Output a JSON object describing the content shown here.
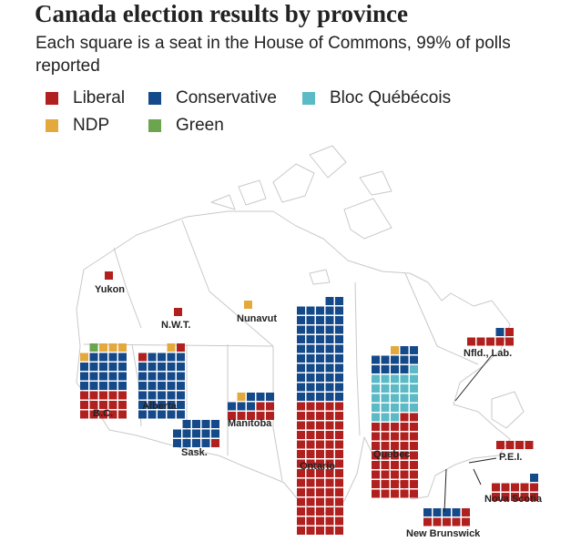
{
  "title": "Canada election results by province",
  "subtitle": "Each square is a seat in the House of Commons, 99% of polls reported",
  "colors": {
    "liberal": "#b0201f",
    "conservative": "#154a8a",
    "bloc": "#5bbac5",
    "ndp": "#e4a93c",
    "green": "#6ba64e",
    "map_fill": "#ffffff",
    "map_stroke": "#c9c9c9"
  },
  "legend": [
    {
      "party": "liberal",
      "label": "Liberal"
    },
    {
      "party": "conservative",
      "label": "Conservative"
    },
    {
      "party": "bloc",
      "label": "Bloc Québécois"
    },
    {
      "party": "ndp",
      "label": "NDP"
    },
    {
      "party": "green",
      "label": "Green"
    }
  ],
  "chart_data": {
    "type": "waffle-map",
    "title": "Canada election results by province",
    "subtitle": "Each square is a seat in the House of Commons, 99% of polls reported",
    "series_order": [
      "liberal",
      "conservative",
      "bloc",
      "ndp",
      "green"
    ],
    "provinces": [
      {
        "id": "yukon",
        "label": "Yukon",
        "seats": {
          "liberal": 1,
          "conservative": 0,
          "bloc": 0,
          "ndp": 0,
          "green": 0
        }
      },
      {
        "id": "nwt",
        "label": "N.W.T.",
        "seats": {
          "liberal": 1,
          "conservative": 0,
          "bloc": 0,
          "ndp": 0,
          "green": 0
        }
      },
      {
        "id": "nunavut",
        "label": "Nunavut",
        "seats": {
          "liberal": 0,
          "conservative": 0,
          "bloc": 0,
          "ndp": 1,
          "green": 0
        }
      },
      {
        "id": "bc",
        "label": "B.C.",
        "seats": {
          "liberal": 15,
          "conservative": 19,
          "bloc": 0,
          "ndp": 4,
          "green": 1
        }
      },
      {
        "id": "alberta",
        "label": "Alberta",
        "seats": {
          "liberal": 2,
          "conservative": 34,
          "bloc": 0,
          "ndp": 1,
          "green": 0
        }
      },
      {
        "id": "sask",
        "label": "Sask.",
        "seats": {
          "liberal": 1,
          "conservative": 13,
          "bloc": 0,
          "ndp": 0,
          "green": 0
        }
      },
      {
        "id": "manitoba",
        "label": "Manitoba",
        "seats": {
          "liberal": 7,
          "conservative": 6,
          "bloc": 0,
          "ndp": 1,
          "green": 0
        }
      },
      {
        "id": "ontario",
        "label": "Ontario",
        "seats": {
          "liberal": 70,
          "conservative": 52,
          "bloc": 0,
          "ndp": 0,
          "green": 0
        }
      },
      {
        "id": "quebec",
        "label": "Quebec",
        "seats": {
          "liberal": 42,
          "conservative": 11,
          "bloc": 24,
          "ndp": 1,
          "green": 0
        }
      },
      {
        "id": "nfld",
        "label": "Nfld., Lab.",
        "seats": {
          "liberal": 6,
          "conservative": 1,
          "bloc": 0,
          "ndp": 0,
          "green": 0
        }
      },
      {
        "id": "pei",
        "label": "P.E.I.",
        "seats": {
          "liberal": 4,
          "conservative": 0,
          "bloc": 0,
          "ndp": 0,
          "green": 0
        }
      },
      {
        "id": "ns",
        "label": "Nova Scotia",
        "seats": {
          "liberal": 10,
          "conservative": 1,
          "bloc": 0,
          "ndp": 0,
          "green": 0
        }
      },
      {
        "id": "nb",
        "label": "New Brunswick",
        "seats": {
          "liberal": 6,
          "conservative": 4,
          "bloc": 0,
          "ndp": 0,
          "green": 0
        }
      }
    ]
  }
}
